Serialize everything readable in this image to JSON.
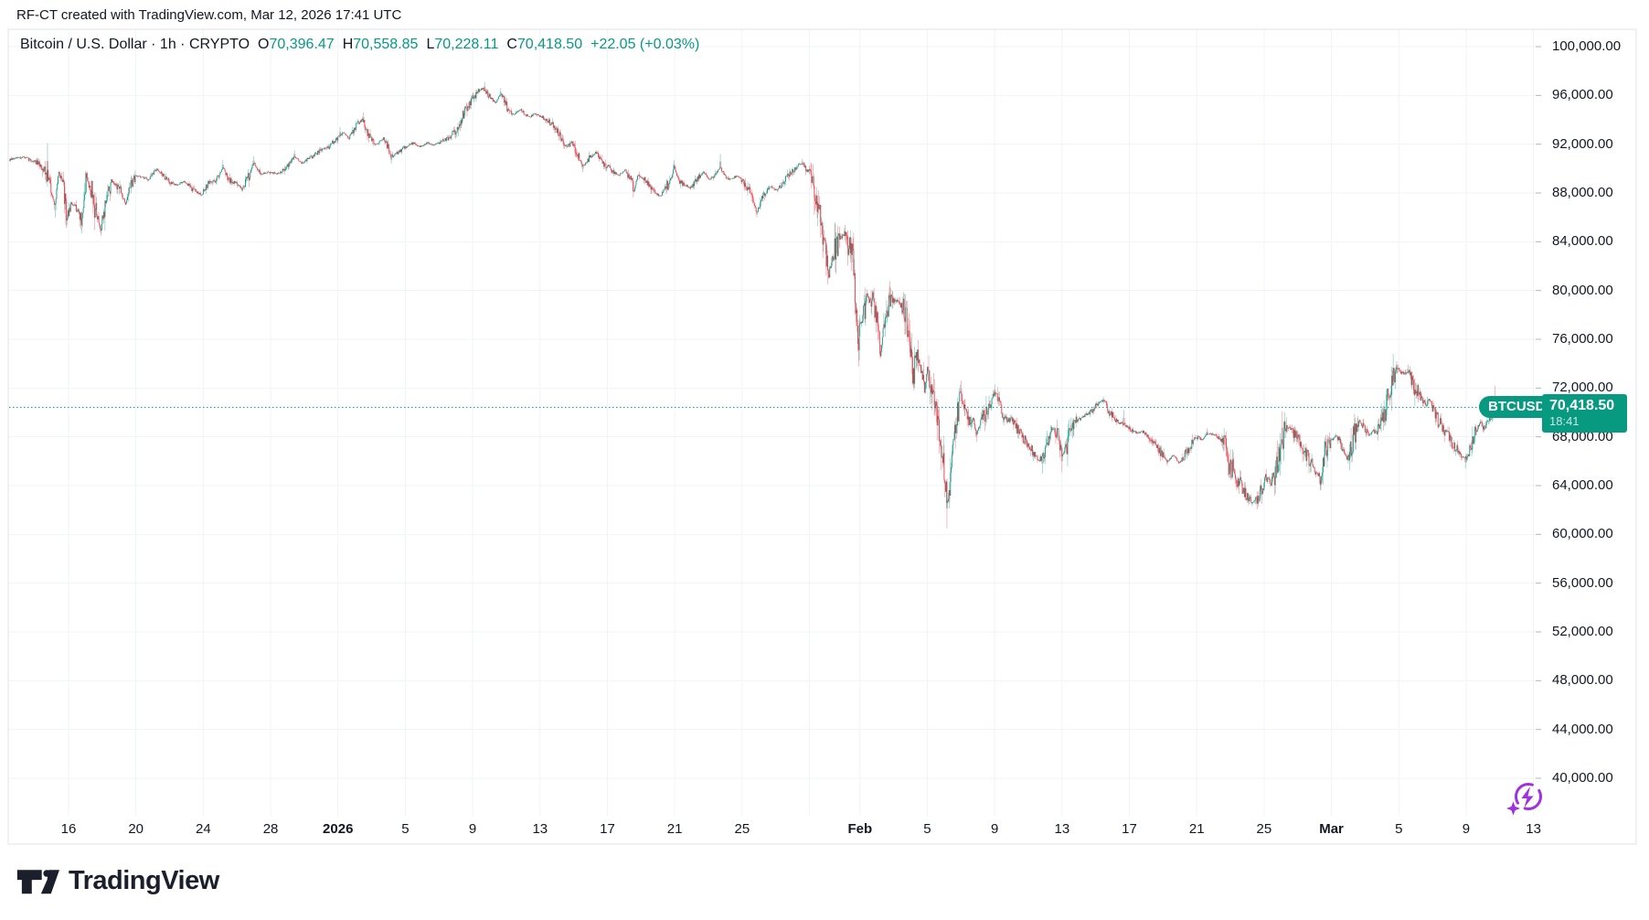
{
  "attribution": "RF-CT created with TradingView.com, Mar 12, 2026 17:41 UTC",
  "legend": {
    "display_title": "Bitcoin / U.S. Dollar · 1h · CRYPTO",
    "symbol_title": "Bitcoin / U.S. Dollar",
    "interval": "1h",
    "exchange": "CRYPTO",
    "o_label": "O",
    "o": "70,396.47",
    "h_label": "H",
    "h": "70,558.85",
    "l_label": "L",
    "l": "70,228.11",
    "c_label": "C",
    "c": "70,418.50",
    "change_display": "+22.05 (+0.03%)"
  },
  "price_label": {
    "symbol": "BTCUSD",
    "price": "70,418.50",
    "time": "18:41"
  },
  "logo_text": "TradingView",
  "colors": {
    "up": "#089981",
    "down": "#F23645",
    "accent": "#089981",
    "text": "#131722",
    "grid": "#F0F3FA",
    "border": "#E0E3EB",
    "tick": "#B2B5BE",
    "purple": "#A030E0"
  },
  "chart_data": {
    "type": "candlestick",
    "title": "Bitcoin / U.S. Dollar",
    "symbol": "BTCUSD",
    "interval": "1h",
    "exchange": "CRYPTO",
    "legend_ohlc": {
      "open": 70396.47,
      "high": 70558.85,
      "low": 70228.11,
      "close": 70418.5,
      "change": 22.05,
      "change_pct": 0.03
    },
    "current_price": 70418.5,
    "current_time_label": "18:41",
    "grid": true,
    "legend_position": "top-left",
    "price_axis": {
      "side": "right",
      "values": [
        100000,
        96000,
        92000,
        88000,
        84000,
        80000,
        76000,
        72000,
        68000,
        64000,
        60000,
        56000,
        52000,
        48000,
        44000,
        40000
      ],
      "labels": [
        "100,000.00",
        "96,000.00",
        "92,000.00",
        "88,000.00",
        "84,000.00",
        "80,000.00",
        "76,000.00",
        "72,000.00",
        "68,000.00",
        "64,000.00",
        "60,000.00",
        "56,000.00",
        "52,000.00",
        "48,000.00",
        "44,000.00",
        "40,000.00"
      ]
    },
    "time_axis": {
      "origin": "2025-12-16",
      "unit": "days_since_origin",
      "ticks": [
        {
          "d": 0,
          "label": "16"
        },
        {
          "d": 4,
          "label": "20"
        },
        {
          "d": 8,
          "label": "24"
        },
        {
          "d": 12,
          "label": "28"
        },
        {
          "d": 16,
          "label": "2026",
          "bold": true
        },
        {
          "d": 20,
          "label": "5"
        },
        {
          "d": 24,
          "label": "9"
        },
        {
          "d": 28,
          "label": "13"
        },
        {
          "d": 32,
          "label": "17"
        },
        {
          "d": 36,
          "label": "21"
        },
        {
          "d": 40,
          "label": "25"
        },
        {
          "d": 44,
          "label": ""
        },
        {
          "d": 47,
          "label": "Feb",
          "bold": true
        },
        {
          "d": 51,
          "label": "5"
        },
        {
          "d": 55,
          "label": "9"
        },
        {
          "d": 59,
          "label": "13"
        },
        {
          "d": 63,
          "label": "17"
        },
        {
          "d": 67,
          "label": "21"
        },
        {
          "d": 71,
          "label": "25"
        },
        {
          "d": 75,
          "label": "Mar",
          "bold": true
        },
        {
          "d": 79,
          "label": "5"
        },
        {
          "d": 83,
          "label": "9"
        },
        {
          "d": 87,
          "label": "13"
        }
      ]
    },
    "domain_days": [
      -3.5,
      86.74
    ],
    "trend_anchors": [
      [
        -3.53,
        90700
      ],
      [
        -2.71,
        90950
      ],
      [
        -1.9,
        90500
      ],
      [
        -1.36,
        89900
      ],
      [
        -0.98,
        87950
      ],
      [
        -0.81,
        86750
      ],
      [
        -0.6,
        89850
      ],
      [
        -0.27,
        88250
      ],
      [
        -0.11,
        85850
      ],
      [
        0.16,
        87150
      ],
      [
        0.54,
        86700
      ],
      [
        0.81,
        85450
      ],
      [
        1.03,
        89100
      ],
      [
        1.36,
        88250
      ],
      [
        1.68,
        86000
      ],
      [
        1.9,
        84950
      ],
      [
        2.23,
        87450
      ],
      [
        2.55,
        88800
      ],
      [
        2.99,
        88450
      ],
      [
        3.37,
        87150
      ],
      [
        3.75,
        88950
      ],
      [
        4.18,
        89400
      ],
      [
        4.72,
        89100
      ],
      [
        5.27,
        90000
      ],
      [
        5.81,
        89100
      ],
      [
        6.35,
        88650
      ],
      [
        6.89,
        88950
      ],
      [
        7.44,
        88200
      ],
      [
        7.87,
        87900
      ],
      [
        8.31,
        88800
      ],
      [
        8.79,
        89100
      ],
      [
        9.17,
        90150
      ],
      [
        9.5,
        89100
      ],
      [
        9.93,
        88800
      ],
      [
        10.31,
        88350
      ],
      [
        10.69,
        89400
      ],
      [
        11.02,
        90450
      ],
      [
        11.4,
        89550
      ],
      [
        11.94,
        89700
      ],
      [
        12.49,
        89550
      ],
      [
        13.03,
        90150
      ],
      [
        13.41,
        91050
      ],
      [
        13.84,
        90450
      ],
      [
        14.39,
        90900
      ],
      [
        14.93,
        91450
      ],
      [
        15.47,
        91800
      ],
      [
        15.91,
        92400
      ],
      [
        16.29,
        92950
      ],
      [
        16.67,
        92550
      ],
      [
        17.1,
        93600
      ],
      [
        17.48,
        94050
      ],
      [
        17.91,
        92400
      ],
      [
        18.29,
        91950
      ],
      [
        18.73,
        92550
      ],
      [
        19.16,
        90950
      ],
      [
        19.6,
        91350
      ],
      [
        20.03,
        91800
      ],
      [
        20.47,
        92100
      ],
      [
        20.9,
        91800
      ],
      [
        21.33,
        92100
      ],
      [
        21.77,
        91950
      ],
      [
        22.2,
        92250
      ],
      [
        22.64,
        92550
      ],
      [
        23.07,
        93300
      ],
      [
        23.51,
        94650
      ],
      [
        23.89,
        95400
      ],
      [
        24.27,
        96300
      ],
      [
        24.59,
        96600
      ],
      [
        24.97,
        95950
      ],
      [
        25.35,
        95400
      ],
      [
        25.68,
        96150
      ],
      [
        26.06,
        94950
      ],
      [
        26.44,
        94450
      ],
      [
        26.87,
        94800
      ],
      [
        27.31,
        94200
      ],
      [
        27.74,
        94500
      ],
      [
        28.18,
        94200
      ],
      [
        28.5,
        93900
      ],
      [
        28.94,
        93300
      ],
      [
        29.26,
        92400
      ],
      [
        29.59,
        91800
      ],
      [
        29.91,
        92100
      ],
      [
        30.24,
        91050
      ],
      [
        30.56,
        90150
      ],
      [
        30.94,
        90900
      ],
      [
        31.32,
        91350
      ],
      [
        31.76,
        90450
      ],
      [
        32.19,
        89950
      ],
      [
        32.63,
        89400
      ],
      [
        33.06,
        89850
      ],
      [
        33.49,
        89100
      ],
      [
        33.55,
        87950
      ],
      [
        33.82,
        89550
      ],
      [
        34.25,
        89100
      ],
      [
        34.69,
        88200
      ],
      [
        35.12,
        87700
      ],
      [
        35.45,
        88450
      ],
      [
        35.83,
        89100
      ],
      [
        35.94,
        90250
      ],
      [
        36.21,
        89100
      ],
      [
        36.53,
        88800
      ],
      [
        36.91,
        88350
      ],
      [
        37.29,
        89100
      ],
      [
        37.73,
        89700
      ],
      [
        38.05,
        89100
      ],
      [
        38.38,
        89400
      ],
      [
        38.7,
        90100
      ],
      [
        39.03,
        89250
      ],
      [
        39.36,
        89100
      ],
      [
        39.68,
        89400
      ],
      [
        40.01,
        88950
      ],
      [
        40.33,
        88450
      ],
      [
        40.66,
        87300
      ],
      [
        40.88,
        86400
      ],
      [
        41.15,
        87450
      ],
      [
        41.42,
        88200
      ],
      [
        41.75,
        88500
      ],
      [
        42.07,
        88200
      ],
      [
        42.4,
        88800
      ],
      [
        42.72,
        89400
      ],
      [
        43.05,
        89850
      ],
      [
        43.32,
        90300
      ],
      [
        43.59,
        90450
      ],
      [
        43.92,
        89850
      ],
      [
        44.24,
        88800
      ],
      [
        44.57,
        86550
      ],
      [
        44.79,
        84700
      ],
      [
        44.95,
        83200
      ],
      [
        45.17,
        81450
      ],
      [
        45.44,
        82950
      ],
      [
        45.76,
        84150
      ],
      [
        46.09,
        84700
      ],
      [
        46.36,
        83700
      ],
      [
        46.58,
        82800
      ],
      [
        46.74,
        78300
      ],
      [
        46.9,
        76050
      ],
      [
        47.12,
        77700
      ],
      [
        47.39,
        79050
      ],
      [
        47.66,
        79200
      ],
      [
        47.94,
        78300
      ],
      [
        48.15,
        75900
      ],
      [
        48.21,
        74700
      ],
      [
        48.48,
        77550
      ],
      [
        48.8,
        79050
      ],
      [
        49.13,
        79200
      ],
      [
        49.46,
        78900
      ],
      [
        49.73,
        78300
      ],
      [
        49.94,
        75300
      ],
      [
        50.16,
        73050
      ],
      [
        50.38,
        74550
      ],
      [
        50.6,
        73800
      ],
      [
        50.81,
        72300
      ],
      [
        51.03,
        73200
      ],
      [
        51.25,
        71700
      ],
      [
        51.46,
        70200
      ],
      [
        51.68,
        68550
      ],
      [
        51.9,
        66700
      ],
      [
        52.06,
        64050
      ],
      [
        52.23,
        62400
      ],
      [
        52.39,
        64800
      ],
      [
        52.61,
        67800
      ],
      [
        52.82,
        70200
      ],
      [
        53.04,
        71100
      ],
      [
        53.26,
        69900
      ],
      [
        53.48,
        69150
      ],
      [
        53.69,
        69700
      ],
      [
        53.91,
        68200
      ],
      [
        54.18,
        69150
      ],
      [
        54.45,
        69900
      ],
      [
        54.72,
        70650
      ],
      [
        55,
        71600
      ],
      [
        55.27,
        71000
      ],
      [
        55.48,
        69800
      ],
      [
        55.76,
        69300
      ],
      [
        56.03,
        69500
      ],
      [
        56.3,
        68700
      ],
      [
        56.62,
        68000
      ],
      [
        56.95,
        67500
      ],
      [
        57.27,
        66800
      ],
      [
        57.6,
        66000
      ],
      [
        57.93,
        66500
      ],
      [
        58.2,
        68000
      ],
      [
        58.47,
        68600
      ],
      [
        58.74,
        68200
      ],
      [
        59.01,
        66400
      ],
      [
        59.28,
        67200
      ],
      [
        59.56,
        68800
      ],
      [
        59.83,
        69400
      ],
      [
        60.15,
        69500
      ],
      [
        60.53,
        69800
      ],
      [
        60.86,
        70300
      ],
      [
        61.18,
        70800
      ],
      [
        61.46,
        71000
      ],
      [
        61.73,
        70300
      ],
      [
        62.05,
        69600
      ],
      [
        62.38,
        69100
      ],
      [
        62.7,
        69000
      ],
      [
        63.08,
        68600
      ],
      [
        63.46,
        68300
      ],
      [
        63.84,
        68400
      ],
      [
        64.22,
        67800
      ],
      [
        64.55,
        67300
      ],
      [
        64.87,
        66700
      ],
      [
        65.25,
        65900
      ],
      [
        65.58,
        66500
      ],
      [
        65.96,
        65900
      ],
      [
        66.34,
        66600
      ],
      [
        66.67,
        67300
      ],
      [
        66.99,
        68000
      ],
      [
        67.32,
        67800
      ],
      [
        67.64,
        68300
      ],
      [
        67.97,
        68200
      ],
      [
        68.35,
        67900
      ],
      [
        68.67,
        67600
      ],
      [
        69,
        65500
      ],
      [
        69.33,
        64600
      ],
      [
        69.65,
        64000
      ],
      [
        69.98,
        63200
      ],
      [
        70.3,
        62700
      ],
      [
        70.57,
        62900
      ],
      [
        70.85,
        63800
      ],
      [
        71.12,
        64700
      ],
      [
        71.39,
        64300
      ],
      [
        71.66,
        64800
      ],
      [
        71.93,
        66500
      ],
      [
        72.2,
        68500
      ],
      [
        72.48,
        68900
      ],
      [
        72.75,
        68300
      ],
      [
        73.02,
        67800
      ],
      [
        73.34,
        67000
      ],
      [
        73.67,
        66200
      ],
      [
        74,
        65300
      ],
      [
        74.32,
        64500
      ],
      [
        74.65,
        67000
      ],
      [
        74.97,
        67700
      ],
      [
        75.24,
        68100
      ],
      [
        75.52,
        67500
      ],
      [
        75.79,
        66500
      ],
      [
        76,
        66100
      ],
      [
        76.33,
        68000
      ],
      [
        76.6,
        69300
      ],
      [
        76.93,
        68800
      ],
      [
        77.2,
        68200
      ],
      [
        77.47,
        68400
      ],
      [
        77.74,
        68600
      ],
      [
        78.01,
        69000
      ],
      [
        78.23,
        70500
      ],
      [
        78.45,
        71800
      ],
      [
        78.67,
        72800
      ],
      [
        78.88,
        73700
      ],
      [
        79.05,
        73300
      ],
      [
        79.32,
        73200
      ],
      [
        79.53,
        73500
      ],
      [
        79.75,
        72700
      ],
      [
        80.02,
        71800
      ],
      [
        80.29,
        71300
      ],
      [
        80.57,
        70700
      ],
      [
        80.84,
        70900
      ],
      [
        81.11,
        70200
      ],
      [
        81.38,
        69200
      ],
      [
        81.65,
        68500
      ],
      [
        81.92,
        68200
      ],
      [
        82.2,
        67400
      ],
      [
        82.47,
        66900
      ],
      [
        82.74,
        66400
      ],
      [
        83.01,
        66200
      ],
      [
        83.28,
        67000
      ],
      [
        83.55,
        68200
      ],
      [
        83.83,
        69000
      ],
      [
        84.1,
        68800
      ],
      [
        84.37,
        69500
      ],
      [
        84.64,
        70000
      ],
      [
        84.91,
        69900
      ],
      [
        85.18,
        69700
      ],
      [
        85.46,
        70000
      ],
      [
        85.73,
        70250
      ],
      [
        86,
        70150
      ],
      [
        86.27,
        70300
      ],
      [
        86.54,
        70250
      ],
      [
        86.74,
        70418.5
      ]
    ],
    "wick_spikes": [
      [
        -1.25,
        92100
      ],
      [
        -0.81,
        86000
      ],
      [
        -0.16,
        85400
      ],
      [
        0.81,
        84700
      ],
      [
        1.0,
        89800
      ],
      [
        1.9,
        84500
      ],
      [
        9.17,
        90700
      ],
      [
        11.02,
        91000
      ],
      [
        13.41,
        91500
      ],
      [
        16.12,
        93400
      ],
      [
        17.48,
        94600
      ],
      [
        19.16,
        90400
      ],
      [
        24.7,
        97100
      ],
      [
        25.68,
        96600
      ],
      [
        30.56,
        89700
      ],
      [
        33.55,
        87600
      ],
      [
        35.94,
        90700
      ],
      [
        38.7,
        91200
      ],
      [
        40.88,
        86000
      ],
      [
        43.59,
        90800
      ],
      [
        45.17,
        81200
      ],
      [
        46.9,
        75900
      ],
      [
        48.21,
        74400
      ],
      [
        50.16,
        72800
      ],
      [
        52.17,
        60500
      ],
      [
        53.04,
        71800
      ],
      [
        53.91,
        67600
      ],
      [
        55,
        72300
      ],
      [
        57.82,
        65000
      ],
      [
        59.01,
        65100
      ],
      [
        61.46,
        71300
      ],
      [
        62.65,
        70200
      ],
      [
        65.25,
        65600
      ],
      [
        67.64,
        68700
      ],
      [
        70.3,
        62300
      ],
      [
        70.57,
        62400
      ],
      [
        72.09,
        70100
      ],
      [
        74.32,
        63900
      ],
      [
        75.24,
        68300
      ],
      [
        76,
        65800
      ],
      [
        76.6,
        69700
      ],
      [
        78.88,
        74200
      ],
      [
        79.53,
        73900
      ],
      [
        82.96,
        65400
      ],
      [
        84.69,
        72200
      ]
    ],
    "vol_zones": [
      [
        -3.6,
        4,
        1.3
      ],
      [
        44.2,
        48.5,
        2.0
      ],
      [
        48.5,
        53.3,
        2.4
      ],
      [
        53.3,
        55.2,
        1.5
      ],
      [
        56,
        60,
        1.5
      ],
      [
        64.5,
        67,
        1.3
      ],
      [
        68.8,
        71.5,
        1.8
      ],
      [
        71.5,
        75,
        1.5
      ],
      [
        75.8,
        80.2,
        1.7
      ],
      [
        80.2,
        86.8,
        1.3
      ]
    ]
  }
}
